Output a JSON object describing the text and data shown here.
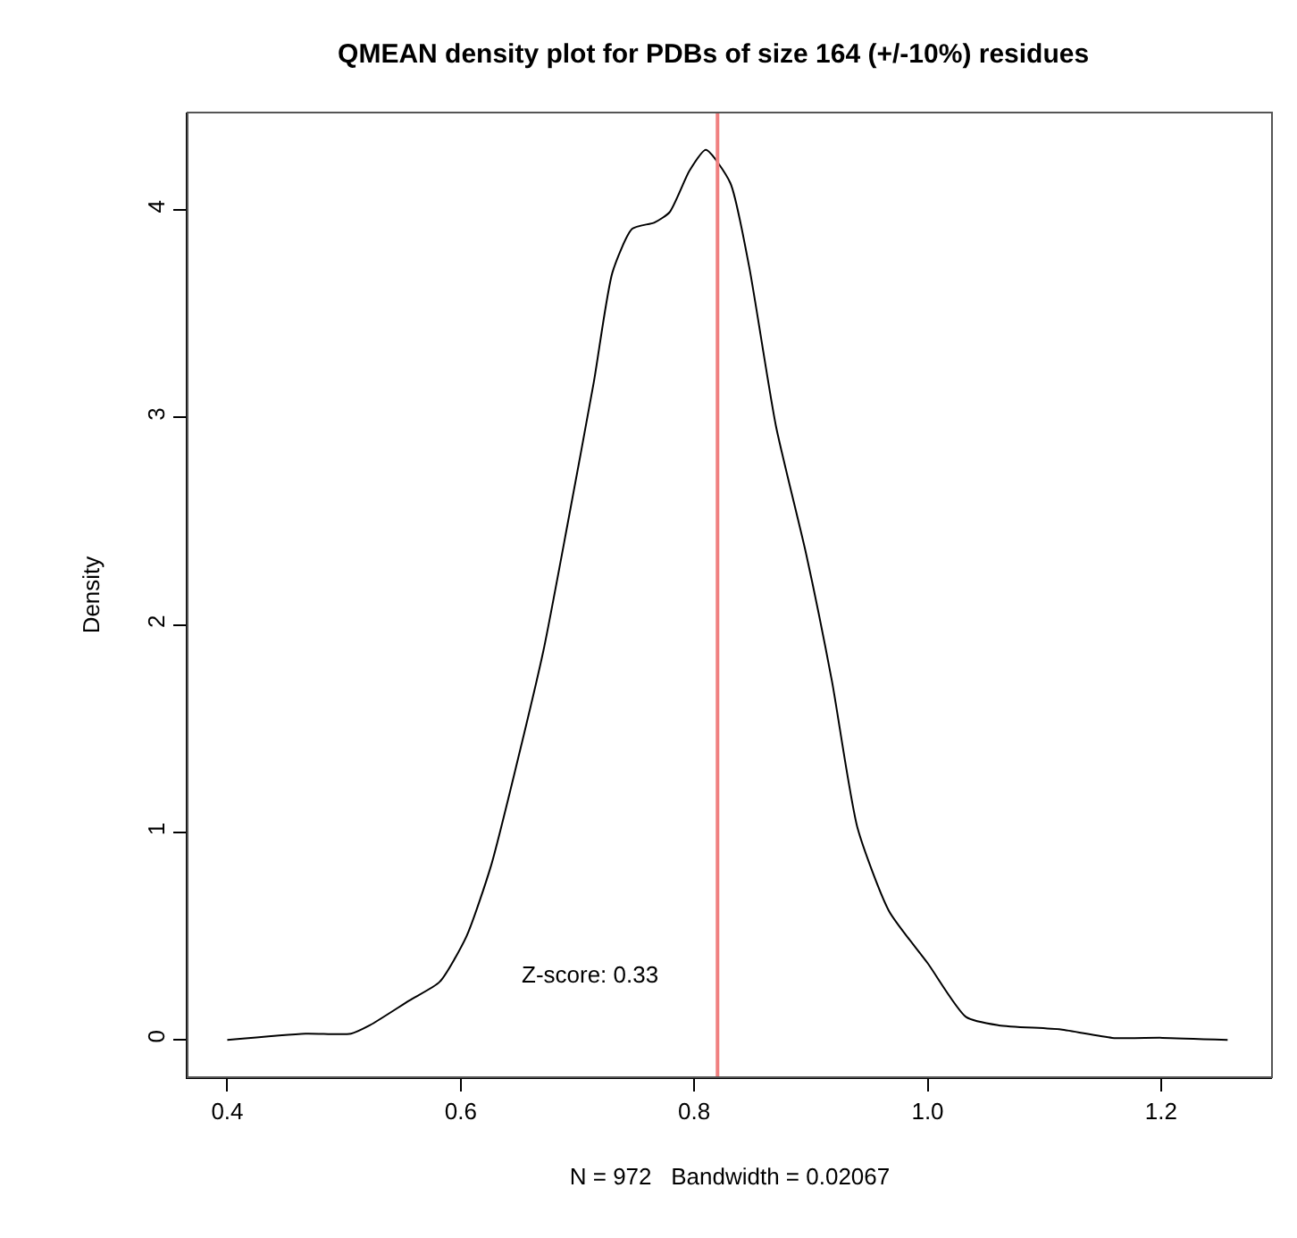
{
  "chart_data": {
    "type": "line",
    "title": "QMEAN density plot for PDBs of size 164 (+/-10%) residues",
    "xlabel": "N = 972   Bandwidth = 0.02067",
    "ylabel": "Density",
    "x": [
      0.4,
      0.467,
      0.506,
      0.522,
      0.556,
      0.582,
      0.605,
      0.626,
      0.648,
      0.671,
      0.692,
      0.714,
      0.73,
      0.747,
      0.766,
      0.779,
      0.796,
      0.81,
      0.831,
      0.847,
      0.87,
      0.896,
      0.918,
      0.94,
      0.967,
      1.0,
      1.033,
      1.061,
      1.114,
      1.158,
      1.201,
      1.257
    ],
    "series": [
      {
        "color": "#000000",
        "values": [
          0.0,
          0.03,
          0.03,
          0.07,
          0.19,
          0.28,
          0.5,
          0.84,
          1.33,
          1.88,
          2.5,
          3.17,
          3.7,
          3.91,
          3.94,
          3.99,
          4.19,
          4.29,
          4.13,
          3.73,
          2.96,
          2.34,
          1.73,
          1.02,
          0.62,
          0.37,
          0.11,
          0.07,
          0.05,
          0.01,
          0.01,
          0.0
        ]
      }
    ],
    "xlim": [
      0.366,
      1.295
    ],
    "ylim": [
      -0.18,
      4.47
    ],
    "xticks": [
      {
        "value": 0.4,
        "label": "0.4"
      },
      {
        "value": 0.6,
        "label": "0.6"
      },
      {
        "value": 0.8,
        "label": "0.8"
      },
      {
        "value": 1.0,
        "label": "1.0"
      },
      {
        "value": 1.2,
        "label": "1.2"
      }
    ],
    "yticks": [
      0,
      1,
      2,
      3,
      4
    ],
    "ref_lines": [
      {
        "axis": "x",
        "value": 0.82,
        "color": "#f08080"
      }
    ],
    "annotations": [
      "Z-score: 0.33"
    ],
    "legend": false,
    "marker": "none",
    "line_style": "solid"
  }
}
